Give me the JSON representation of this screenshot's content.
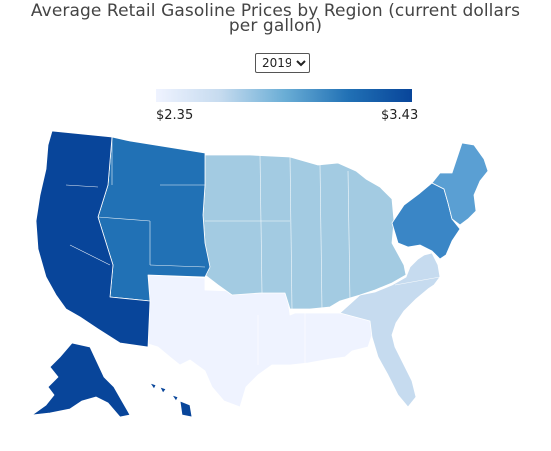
{
  "header": {
    "title_line1": "Average Retail Gasoline Prices by Region (current dollars",
    "title_line2": "per gallon)"
  },
  "year_select": {
    "selected": "2019",
    "options": [
      "2019"
    ]
  },
  "legend": {
    "min_label": "$2.35",
    "max_label": "$3.43",
    "color_low": "#eff3ff",
    "color_high": "#08459a"
  },
  "map_data": {
    "type": "choropleth",
    "scale": {
      "min": 2.35,
      "max": 3.43
    },
    "regions": [
      {
        "name": "West Coast",
        "color": "#08459a"
      },
      {
        "name": "Rocky Mountain",
        "color": "#2171b5"
      },
      {
        "name": "Midwest",
        "color": "#a3cbe2"
      },
      {
        "name": "Lower Atlantic",
        "color": "#c6dbef"
      },
      {
        "name": "Central Atlantic",
        "color": "#3a86c6"
      },
      {
        "name": "New England",
        "color": "#5a9fd3"
      },
      {
        "name": "Gulf Coast",
        "color": "#eff3ff"
      }
    ]
  }
}
